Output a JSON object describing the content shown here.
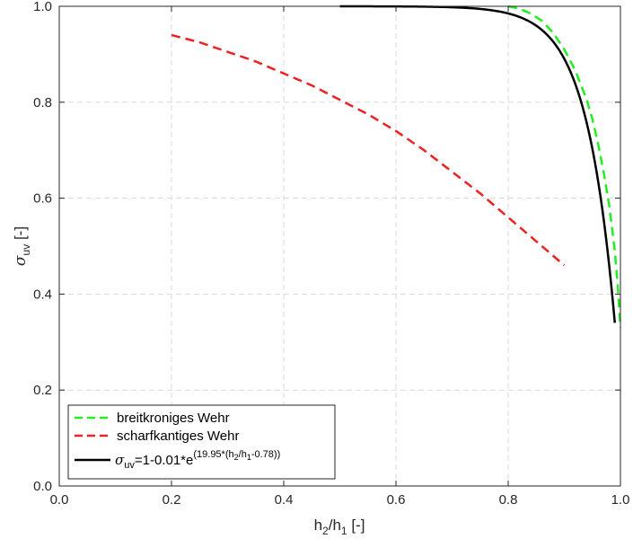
{
  "chart_data": {
    "type": "line",
    "xlabel": {
      "main": "h",
      "sub1": "2",
      "mid": "/h",
      "sub2": "1",
      "unit": " [-]"
    },
    "ylabel": {
      "symbol": "σ",
      "sub": "uv",
      "unit": " [-]"
    },
    "xlim": [
      0,
      1
    ],
    "ylim": [
      0,
      1
    ],
    "xticks": [
      0,
      0.2,
      0.4,
      0.6,
      0.8,
      1
    ],
    "xtick_labels": [
      "0.0",
      "0.2",
      "0.4",
      "0.6",
      "0.8",
      "1.0"
    ],
    "yticks": [
      0,
      0.2,
      0.4,
      0.6,
      0.8,
      1
    ],
    "ytick_labels": [
      "0.0",
      "0.2",
      "0.4",
      "0.6",
      "0.8",
      "1.0"
    ],
    "grid": true,
    "legend_position": "bottom-left",
    "series": [
      {
        "name": "breitkroniges Wehr",
        "color": "#22ee22",
        "dash": "dashed",
        "x": [
          0.8,
          0.82,
          0.84,
          0.86,
          0.88,
          0.9,
          0.92,
          0.94,
          0.95,
          0.96,
          0.97,
          0.98,
          0.99,
          0.995,
          1.0
        ],
        "y": [
          1.0,
          0.995,
          0.985,
          0.97,
          0.945,
          0.91,
          0.865,
          0.805,
          0.765,
          0.715,
          0.655,
          0.585,
          0.49,
          0.42,
          0.33
        ]
      },
      {
        "name": "scharfkantiges Wehr",
        "color": "#ee2222",
        "dash": "dashed",
        "x": [
          0.2,
          0.25,
          0.3,
          0.35,
          0.4,
          0.45,
          0.5,
          0.55,
          0.6,
          0.65,
          0.7,
          0.75,
          0.8,
          0.85,
          0.9
        ],
        "y": [
          0.94,
          0.925,
          0.905,
          0.885,
          0.86,
          0.835,
          0.805,
          0.775,
          0.74,
          0.7,
          0.655,
          0.61,
          0.56,
          0.51,
          0.46
        ]
      },
      {
        "name_parts": {
          "sym": "σ",
          "sub": "uv",
          "pre": "=1-0.01*e",
          "sup": "(19.95*(h",
          "sup_sub1": "2",
          "sup_mid": "/h",
          "sup_sub2": "1",
          "sup_end": "-0.78))"
        },
        "color": "#000000",
        "dash": "solid",
        "formula": {
          "a": 0.01,
          "b": 19.95,
          "c": 0.78,
          "x_start": 0.5,
          "x_end": 0.99
        }
      }
    ]
  }
}
